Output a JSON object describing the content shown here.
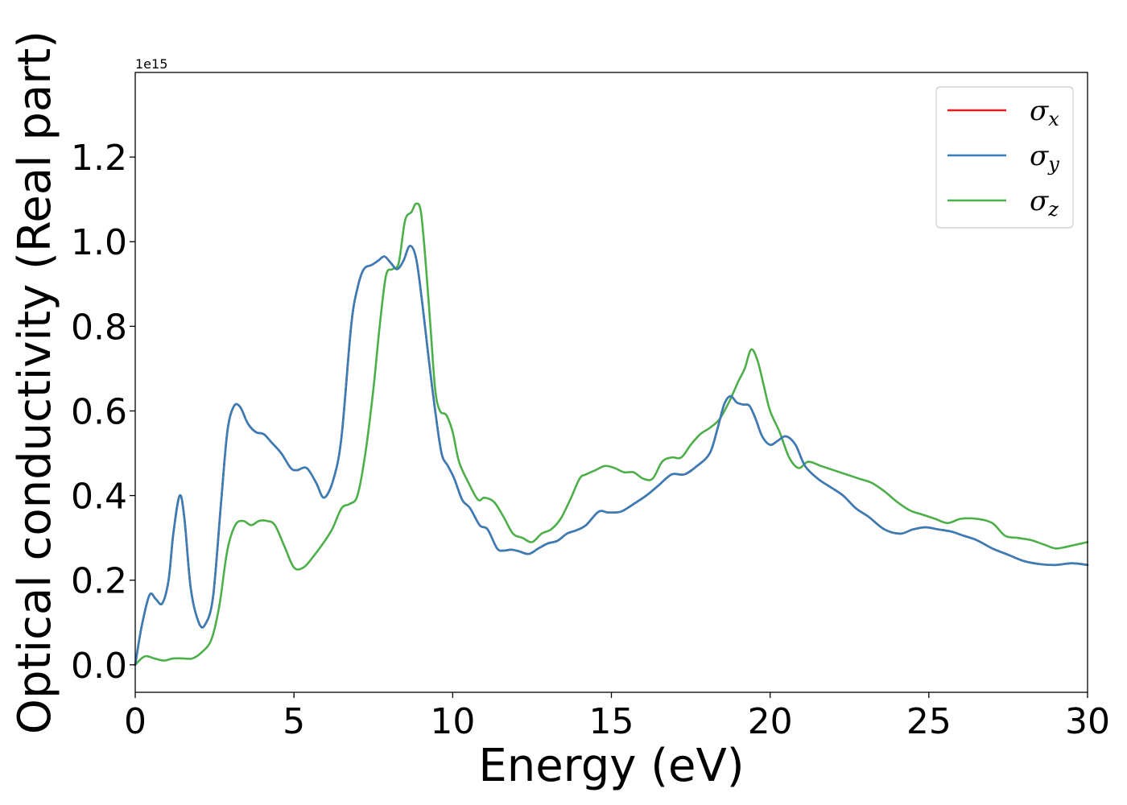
{
  "chart_data": {
    "type": "line",
    "xlabel": "Energy (eV)",
    "ylabel": "Optical conductivity (Real part)",
    "y_offset_text": "1e15",
    "xlim": [
      0,
      30
    ],
    "ylim": [
      -0.065,
      1.4
    ],
    "y_scale_multiplier": 1000000000000000.0,
    "x_ticks": [
      0,
      5,
      10,
      15,
      20,
      25,
      30
    ],
    "x_tick_labels": [
      "0",
      "5",
      "10",
      "15",
      "20",
      "25",
      "30"
    ],
    "y_ticks": [
      0.0,
      0.2,
      0.4,
      0.6,
      0.8,
      1.0,
      1.2
    ],
    "y_tick_labels": [
      "0.0",
      "0.2",
      "0.4",
      "0.6",
      "0.8",
      "1.0",
      "1.2"
    ],
    "grid": false,
    "legend_position": "top-right",
    "series": [
      {
        "name": "σx",
        "symbol": "σ",
        "subscript": "x",
        "color": "#e41a1c",
        "x": [
          0,
          0.2,
          0.45,
          0.65,
          0.85,
          1.05,
          1.2,
          1.4,
          1.55,
          1.75,
          2.0,
          2.2,
          2.45,
          2.7,
          2.9,
          3.1,
          3.3,
          3.55,
          3.8,
          4.05,
          4.3,
          4.6,
          4.9,
          5.1,
          5.4,
          5.7,
          5.95,
          6.25,
          6.5,
          6.8,
          7.0,
          7.2,
          7.45,
          7.65,
          7.85,
          8.05,
          8.25,
          8.45,
          8.65,
          8.85,
          9.05,
          9.25,
          9.45,
          9.65,
          9.85,
          10.05,
          10.3,
          10.55,
          10.85,
          11.1,
          11.4,
          11.6,
          11.85,
          12.1,
          12.4,
          12.7,
          13.0,
          13.3,
          13.6,
          13.9,
          14.2,
          14.6,
          14.9,
          15.3,
          15.7,
          16.1,
          16.5,
          16.9,
          17.3,
          17.7,
          18.1,
          18.35,
          18.55,
          18.75,
          18.95,
          19.15,
          19.35,
          19.55,
          19.75,
          20.0,
          20.25,
          20.5,
          20.8,
          21.1,
          21.5,
          21.9,
          22.3,
          22.7,
          23.1,
          23.6,
          24.1,
          24.5,
          24.9,
          25.3,
          25.7,
          26.1,
          26.5,
          27.0,
          27.5,
          28.0,
          28.5,
          29.0,
          29.5,
          30.0
        ],
        "y": [
          0.0,
          0.09,
          0.165,
          0.155,
          0.145,
          0.2,
          0.31,
          0.4,
          0.345,
          0.18,
          0.1,
          0.095,
          0.16,
          0.38,
          0.55,
          0.61,
          0.61,
          0.57,
          0.55,
          0.545,
          0.525,
          0.5,
          0.465,
          0.46,
          0.465,
          0.43,
          0.395,
          0.44,
          0.54,
          0.8,
          0.89,
          0.935,
          0.945,
          0.955,
          0.965,
          0.95,
          0.935,
          0.955,
          0.99,
          0.96,
          0.85,
          0.72,
          0.6,
          0.5,
          0.47,
          0.44,
          0.39,
          0.37,
          0.33,
          0.32,
          0.275,
          0.27,
          0.272,
          0.268,
          0.262,
          0.275,
          0.287,
          0.293,
          0.31,
          0.318,
          0.33,
          0.362,
          0.36,
          0.362,
          0.38,
          0.4,
          0.425,
          0.45,
          0.45,
          0.47,
          0.5,
          0.56,
          0.615,
          0.635,
          0.62,
          0.615,
          0.612,
          0.58,
          0.54,
          0.52,
          0.53,
          0.54,
          0.52,
          0.47,
          0.44,
          0.42,
          0.4,
          0.37,
          0.35,
          0.32,
          0.31,
          0.32,
          0.325,
          0.32,
          0.315,
          0.305,
          0.295,
          0.275,
          0.26,
          0.245,
          0.238,
          0.236,
          0.24,
          0.236
        ]
      },
      {
        "name": "σy",
        "symbol": "σ",
        "subscript": "y",
        "color": "#377eb8",
        "x": [
          0,
          0.2,
          0.45,
          0.65,
          0.85,
          1.05,
          1.2,
          1.4,
          1.55,
          1.75,
          2.0,
          2.2,
          2.45,
          2.7,
          2.9,
          3.1,
          3.3,
          3.55,
          3.8,
          4.05,
          4.3,
          4.6,
          4.9,
          5.1,
          5.4,
          5.7,
          5.95,
          6.25,
          6.5,
          6.8,
          7.0,
          7.2,
          7.45,
          7.65,
          7.85,
          8.05,
          8.25,
          8.45,
          8.65,
          8.85,
          9.05,
          9.25,
          9.45,
          9.65,
          9.85,
          10.05,
          10.3,
          10.55,
          10.85,
          11.1,
          11.4,
          11.6,
          11.85,
          12.1,
          12.4,
          12.7,
          13.0,
          13.3,
          13.6,
          13.9,
          14.2,
          14.6,
          14.9,
          15.3,
          15.7,
          16.1,
          16.5,
          16.9,
          17.3,
          17.7,
          18.1,
          18.35,
          18.55,
          18.75,
          18.95,
          19.15,
          19.35,
          19.55,
          19.75,
          20.0,
          20.25,
          20.5,
          20.8,
          21.1,
          21.5,
          21.9,
          22.3,
          22.7,
          23.1,
          23.6,
          24.1,
          24.5,
          24.9,
          25.3,
          25.7,
          26.1,
          26.5,
          27.0,
          27.5,
          28.0,
          28.5,
          29.0,
          29.5,
          30.0
        ],
        "y": [
          0.0,
          0.09,
          0.165,
          0.155,
          0.145,
          0.2,
          0.31,
          0.4,
          0.345,
          0.18,
          0.1,
          0.095,
          0.16,
          0.38,
          0.55,
          0.61,
          0.61,
          0.57,
          0.55,
          0.545,
          0.525,
          0.5,
          0.465,
          0.46,
          0.465,
          0.43,
          0.395,
          0.44,
          0.54,
          0.8,
          0.89,
          0.935,
          0.945,
          0.955,
          0.965,
          0.95,
          0.935,
          0.955,
          0.99,
          0.96,
          0.85,
          0.72,
          0.6,
          0.5,
          0.47,
          0.44,
          0.39,
          0.37,
          0.33,
          0.32,
          0.275,
          0.27,
          0.272,
          0.268,
          0.262,
          0.275,
          0.287,
          0.293,
          0.31,
          0.318,
          0.33,
          0.362,
          0.36,
          0.362,
          0.38,
          0.4,
          0.425,
          0.45,
          0.45,
          0.47,
          0.5,
          0.56,
          0.615,
          0.635,
          0.62,
          0.615,
          0.612,
          0.58,
          0.54,
          0.52,
          0.53,
          0.54,
          0.52,
          0.47,
          0.44,
          0.42,
          0.4,
          0.37,
          0.35,
          0.32,
          0.31,
          0.32,
          0.325,
          0.32,
          0.315,
          0.305,
          0.295,
          0.275,
          0.26,
          0.245,
          0.238,
          0.236,
          0.24,
          0.236
        ]
      },
      {
        "name": "σz",
        "symbol": "σ",
        "subscript": "z",
        "color": "#4daf4a",
        "x": [
          0,
          0.3,
          0.6,
          0.9,
          1.2,
          1.5,
          1.8,
          2.1,
          2.4,
          2.65,
          2.9,
          3.15,
          3.4,
          3.65,
          3.9,
          4.15,
          4.4,
          4.7,
          5.0,
          5.3,
          5.6,
          5.9,
          6.2,
          6.5,
          6.75,
          7.0,
          7.25,
          7.5,
          7.7,
          7.9,
          8.1,
          8.3,
          8.5,
          8.7,
          8.85,
          9.0,
          9.15,
          9.3,
          9.45,
          9.6,
          9.8,
          10.0,
          10.2,
          10.5,
          10.8,
          11.0,
          11.3,
          11.6,
          11.9,
          12.2,
          12.5,
          12.8,
          13.1,
          13.4,
          13.7,
          14.0,
          14.2,
          14.5,
          14.8,
          15.1,
          15.4,
          15.7,
          16.0,
          16.3,
          16.6,
          16.9,
          17.2,
          17.5,
          17.8,
          18.1,
          18.4,
          18.7,
          19.0,
          19.2,
          19.4,
          19.6,
          19.8,
          20.0,
          20.3,
          20.6,
          20.9,
          21.2,
          21.6,
          22.0,
          22.4,
          22.8,
          23.2,
          23.6,
          24.0,
          24.4,
          24.8,
          25.2,
          25.6,
          26.0,
          26.5,
          27.0,
          27.4,
          27.8,
          28.2,
          28.6,
          29.0,
          29.4,
          29.7,
          30.0
        ],
        "y": [
          0.0,
          0.02,
          0.015,
          0.01,
          0.015,
          0.015,
          0.015,
          0.03,
          0.06,
          0.14,
          0.27,
          0.33,
          0.34,
          0.33,
          0.34,
          0.34,
          0.33,
          0.28,
          0.23,
          0.23,
          0.255,
          0.285,
          0.32,
          0.37,
          0.38,
          0.4,
          0.5,
          0.65,
          0.8,
          0.92,
          0.935,
          0.95,
          1.05,
          1.07,
          1.09,
          1.07,
          0.95,
          0.8,
          0.65,
          0.6,
          0.59,
          0.55,
          0.48,
          0.43,
          0.39,
          0.395,
          0.385,
          0.35,
          0.31,
          0.3,
          0.29,
          0.31,
          0.32,
          0.345,
          0.39,
          0.44,
          0.45,
          0.46,
          0.47,
          0.465,
          0.455,
          0.455,
          0.44,
          0.44,
          0.48,
          0.49,
          0.49,
          0.52,
          0.545,
          0.56,
          0.58,
          0.62,
          0.67,
          0.7,
          0.745,
          0.72,
          0.66,
          0.6,
          0.55,
          0.49,
          0.465,
          0.48,
          0.47,
          0.46,
          0.45,
          0.44,
          0.43,
          0.41,
          0.385,
          0.365,
          0.355,
          0.345,
          0.335,
          0.345,
          0.345,
          0.335,
          0.305,
          0.3,
          0.295,
          0.285,
          0.275,
          0.28,
          0.285,
          0.29
        ]
      }
    ]
  }
}
